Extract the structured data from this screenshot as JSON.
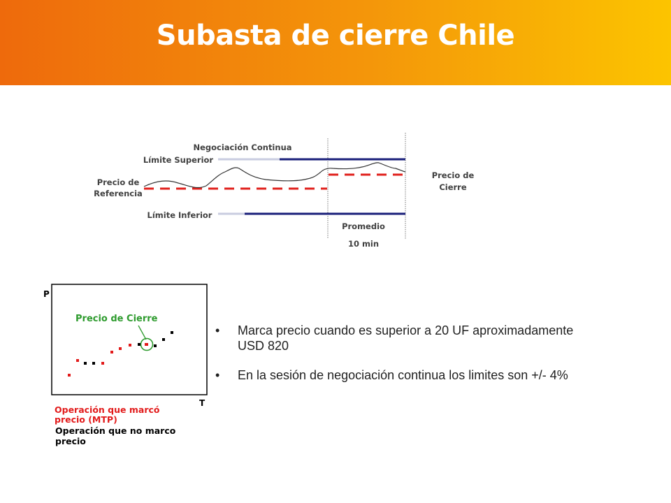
{
  "title": "Subasta de cierre Chile",
  "top_diagram": {
    "labels": {
      "negociacion_continua": "Negociación Continua",
      "limite_superior": "Límite Superior",
      "precio_referencia_1": "Precio de",
      "precio_referencia_2": "Referencia",
      "limite_inferior": "Límite Inferior",
      "precio_cierre_1": "Precio de",
      "precio_cierre_2": "Cierre",
      "promedio": "Promedio",
      "duracion": "10 min"
    },
    "colors": {
      "limit_line": "#1a1f7a",
      "reference_line": "#e0201c",
      "price_line": "#333333"
    }
  },
  "bottom_diagram": {
    "axis_p": "P",
    "axis_t": "T",
    "precio_cierre_label": "Precio de Cierre",
    "legend_mtp_1": "Operación que marcó",
    "legend_mtp_2": "precio (MTP)",
    "legend_no_1": "Operación que no marco",
    "legend_no_2": "precio",
    "colors": {
      "mtp": "#e21b1b",
      "no_mtp": "#000000",
      "highlight": "#2e9b2e"
    }
  },
  "bullets": [
    {
      "line1": "Marca precio cuando es superior a 20 UF aproximadamente",
      "line2": "USD 820"
    },
    {
      "line1": "En la sesión de negociación continua los limites son +/- 4%"
    }
  ]
}
